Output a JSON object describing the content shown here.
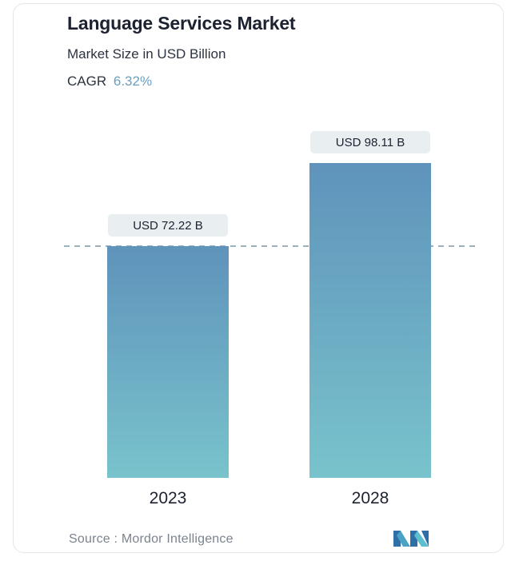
{
  "chart_data": {
    "type": "bar",
    "title": "Language Services Market",
    "subtitle": "Market Size in USD Billion",
    "cagr_label": "CAGR",
    "cagr_value": "6.32%",
    "categories": [
      "2023",
      "2028"
    ],
    "values": [
      72.22,
      98.11
    ],
    "value_labels": [
      "USD 72.22 B",
      "USD 98.11 B"
    ],
    "reference_line": 72.22,
    "grid": false,
    "colors": {
      "bar_top": "#5f93bb",
      "bar_bottom": "#79c3cc",
      "label_bg": "#e9eef1",
      "reference": "#5f7f93"
    }
  },
  "source": "Source :  Mordor Intelligence",
  "logo_icon": "mordor-intelligence-logo"
}
